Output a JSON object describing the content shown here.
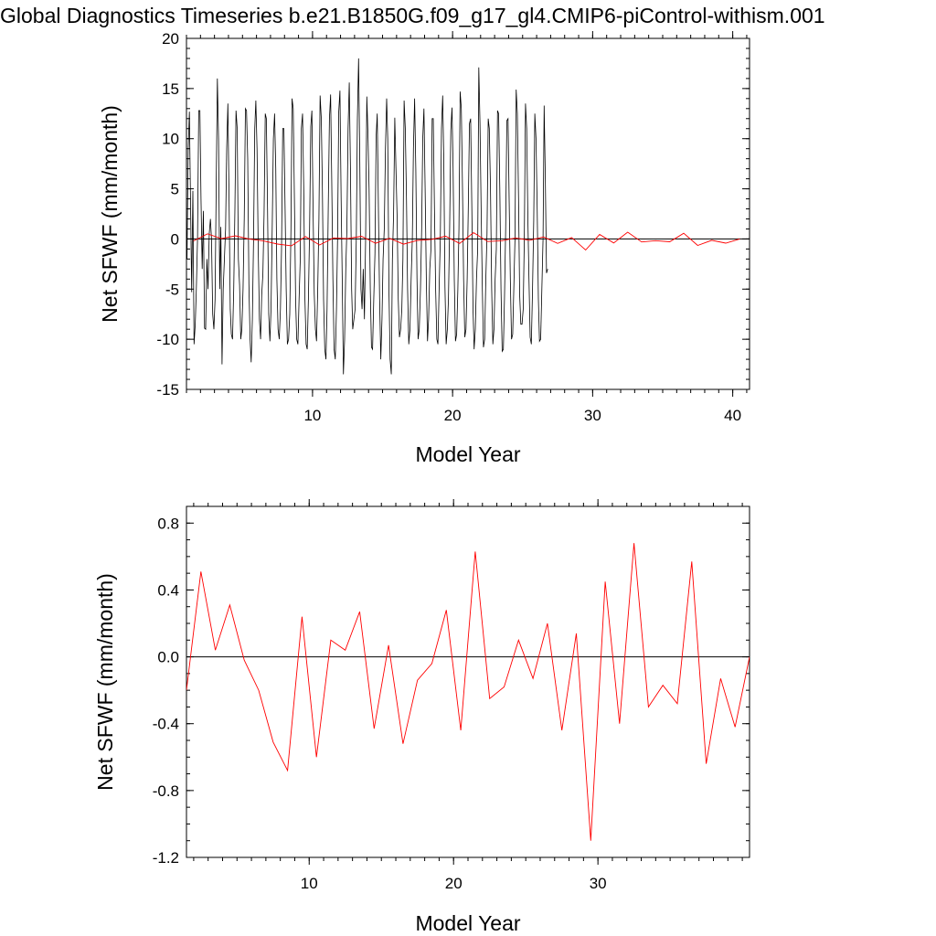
{
  "title": "Global Diagnostics Timeseries b.e21.B1850G.f09_g17_gl4.CMIP6-piControl-withism.001",
  "colors": {
    "monthly": "#000000",
    "annual": "#ff0000",
    "zero_line": "#000000"
  },
  "chart_data": [
    {
      "type": "line",
      "xlabel": "Model Year",
      "ylabel": "Net SFWF (mm/month)",
      "xlim": [
        1,
        41.2
      ],
      "ylim": [
        -15,
        20
      ],
      "xticks": [
        10,
        20,
        30,
        40
      ],
      "yticks": [
        -15,
        -10,
        -5,
        0,
        5,
        10,
        15,
        20
      ],
      "ytick_labels": [
        "-15",
        "-10",
        "-5",
        "0",
        "5",
        "10",
        "15",
        "20"
      ],
      "reference_line": 0,
      "grid": false,
      "monthly_series": {
        "x_start": 1.04,
        "x_step": 0.08333,
        "values": [
          -2,
          9,
          12.7,
          4,
          -5.3,
          4.8,
          -10.5,
          -8.5,
          -5,
          0,
          12.8,
          12.8,
          4,
          -3,
          2.8,
          -8.9,
          -9,
          -2,
          -5,
          0.5,
          2,
          0,
          -7.5,
          -9,
          -6,
          5,
          16,
          10,
          -5,
          1.2,
          -12.5,
          -5,
          -2,
          1,
          9,
          13.5,
          4,
          -7,
          -9.5,
          -10,
          -5,
          3,
          12.8,
          11,
          -2,
          -4.6,
          -10,
          -9,
          -5,
          2,
          13,
          12.8,
          8,
          -4.5,
          -10,
          -12.3,
          -8,
          0,
          11,
          13.8,
          9,
          -1,
          -8,
          -10,
          -5.6,
          -3.5,
          2.5,
          12.5,
          12,
          3,
          -7.5,
          -10.2,
          -7,
          1,
          10,
          12.5,
          7,
          -4,
          -9,
          -10,
          -7,
          -1,
          11,
          11,
          3,
          -5,
          -10.5,
          -10,
          -7.5,
          1,
          14,
          13,
          4,
          -6,
          -10,
          -10.5,
          -6,
          -2,
          11,
          12.5,
          5,
          -6,
          -10.5,
          -11,
          -6,
          1,
          11.2,
          12.8,
          3,
          -5.5,
          -9,
          -10.2,
          -5,
          2,
          14.3,
          12,
          5,
          -6,
          -11,
          -12,
          -7,
          3,
          12,
          14.4,
          6,
          -4,
          -11,
          -12,
          -7,
          0,
          12.7,
          14.8,
          4,
          -4,
          -13.5,
          -10,
          -3,
          1,
          11,
          15.6,
          7,
          -5,
          -9,
          -8,
          -7,
          0,
          12,
          18,
          8,
          -5,
          -7,
          -3,
          -8,
          0,
          14.2,
          10.6,
          5,
          -5,
          -10.8,
          -11,
          -6,
          -1.5,
          10.2,
          12.5,
          3,
          -6,
          -12,
          -8,
          -2,
          1,
          9,
          14,
          10,
          -5,
          -12,
          -13.5,
          -2,
          2.5,
          12.1,
          7,
          2,
          -6,
          -9.8,
          -9,
          -7,
          -2,
          13.8,
          11,
          4,
          -5,
          -10.5,
          -9,
          -4,
          0,
          9,
          14,
          7,
          -4,
          -10,
          -9,
          -5,
          1,
          10,
          13,
          5,
          -4,
          -10.2,
          -8,
          -3,
          -1,
          12,
          12,
          3,
          -5,
          -10,
          -10.5,
          -5,
          0,
          11,
          14.3,
          8,
          -4.8,
          -10.5,
          -9,
          -6,
          1,
          10.8,
          13.1,
          7,
          -4,
          -10.2,
          -9.5,
          -5,
          1,
          14.7,
          13,
          5,
          -4,
          -9.8,
          -9,
          -4,
          3,
          11.5,
          12,
          3,
          -7,
          -11,
          -9,
          -4,
          -1,
          17.1,
          11.6,
          2.8,
          -5,
          -10.8,
          -10,
          -4,
          0.5,
          12,
          11,
          5,
          -5,
          -10.5,
          -9,
          -4,
          -1,
          12.8,
          12.5,
          5,
          -5,
          -11.2,
          -11,
          -6,
          1,
          11.8,
          12,
          4,
          -4,
          -10,
          -9.5,
          -5,
          0,
          14.9,
          12.5,
          4,
          -5.5,
          -8.5,
          -8.5,
          -7,
          0,
          13.5,
          11,
          2,
          -4,
          -9.8,
          -10.5,
          -5,
          1.8,
          12.5,
          10,
          3,
          -6,
          -10.2,
          -10,
          -5,
          0,
          13.3,
          6,
          -3.4,
          -3
        ]
      }
    },
    {
      "type": "line",
      "xlabel": "Model Year",
      "ylabel": "Net SFWF (mm/month)",
      "xlim": [
        1.5,
        40.5
      ],
      "ylim": [
        -1.2,
        0.9
      ],
      "xticks": [
        10,
        20,
        30
      ],
      "yticks": [
        -1.2,
        -0.8,
        -0.4,
        0.0,
        0.4,
        0.8
      ],
      "ytick_labels": [
        "-1.2",
        "-0.8",
        "-0.4",
        "0.0",
        "0.4",
        "0.8"
      ],
      "reference_line": 0,
      "grid": false,
      "annual_series": {
        "x": [
          1.5,
          2.5,
          3.5,
          4.5,
          5.5,
          6.5,
          7.5,
          8.5,
          9.5,
          10.5,
          11.5,
          12.5,
          13.5,
          14.5,
          15.5,
          16.5,
          17.5,
          18.5,
          19.5,
          20.5,
          21.5,
          22.5,
          23.5,
          24.5,
          25.5,
          26.5,
          27.5,
          28.5,
          29.5,
          30.5,
          31.5,
          32.5,
          33.5,
          34.5,
          35.5,
          36.5,
          37.5,
          38.5,
          39.5,
          40.5
        ],
        "values": [
          -0.2,
          0.51,
          0.04,
          0.31,
          -0.02,
          -0.2,
          -0.51,
          -0.68,
          0.24,
          -0.6,
          0.1,
          0.04,
          0.27,
          -0.43,
          0.07,
          -0.52,
          -0.14,
          -0.04,
          0.28,
          -0.44,
          0.63,
          -0.25,
          -0.18,
          0.1,
          -0.13,
          0.2,
          -0.44,
          0.14,
          -1.1,
          0.45,
          -0.4,
          0.68,
          -0.3,
          -0.17,
          -0.28,
          0.57,
          -0.64,
          -0.13,
          -0.42,
          0
        ]
      }
    }
  ]
}
